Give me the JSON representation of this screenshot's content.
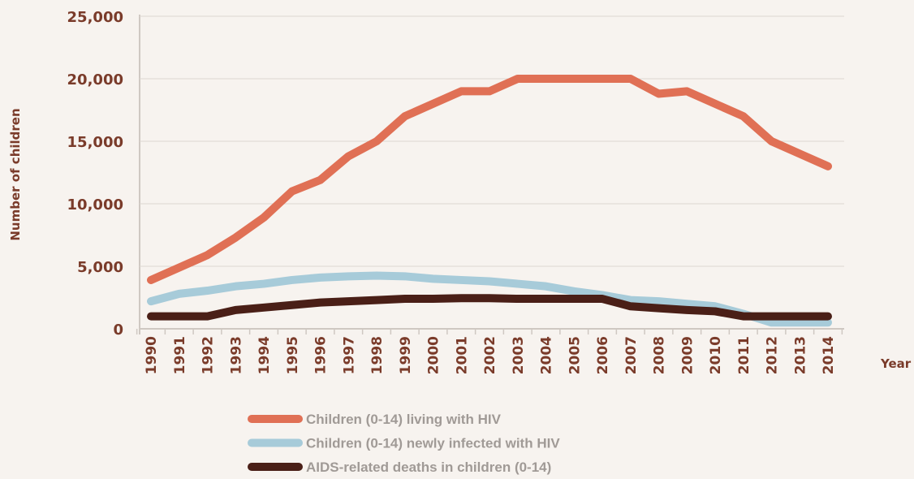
{
  "chart_data": {
    "type": "line",
    "y_label": "Number of children",
    "x_label": "Year",
    "categories": [
      "1990",
      "1991",
      "1992",
      "1993",
      "1994",
      "1995",
      "1996",
      "1997",
      "1998",
      "1999",
      "2000",
      "2001",
      "2002",
      "2003",
      "2004",
      "2005",
      "2006",
      "2007",
      "2008",
      "2009",
      "2010",
      "2011",
      "2012",
      "2013",
      "2014"
    ],
    "series": [
      {
        "name": "Children (0-14) living with HIV",
        "color": "#e07055",
        "values": [
          3900,
          4900,
          5900,
          7300,
          8900,
          11000,
          11900,
          13800,
          15000,
          17000,
          18000,
          19000,
          19000,
          20000,
          20000,
          20000,
          20000,
          20000,
          18800,
          19000,
          18000,
          17000,
          15000,
          14000,
          13000
        ]
      },
      {
        "name": "Children (0-14) newly infected with HIV",
        "color": "#a7cbd9",
        "values": [
          2200,
          2800,
          3050,
          3400,
          3600,
          3900,
          4100,
          4200,
          4250,
          4200,
          4000,
          3900,
          3800,
          3600,
          3400,
          3000,
          2700,
          2300,
          2200,
          2000,
          1800,
          1200,
          500,
          500,
          500
        ]
      },
      {
        "name": "AIDS-related deaths in children (0-14)",
        "color": "#4a1f17",
        "values": [
          1000,
          1000,
          1000,
          1500,
          1700,
          1900,
          2100,
          2200,
          2300,
          2400,
          2400,
          2450,
          2450,
          2400,
          2400,
          2400,
          2400,
          1800,
          1650,
          1500,
          1400,
          1000,
          1000,
          1000,
          1000
        ]
      }
    ],
    "ylim": [
      0,
      25000
    ],
    "yticks": [
      0,
      {
        "value": 5000,
        "label": "5,000"
      },
      {
        "value": 10000,
        "label": "10,000"
      },
      {
        "value": 15000,
        "label": "15,000"
      },
      {
        "value": 20000,
        "label": "20,000"
      },
      {
        "value": 25000,
        "label": "25,000"
      }
    ],
    "grid": true
  }
}
